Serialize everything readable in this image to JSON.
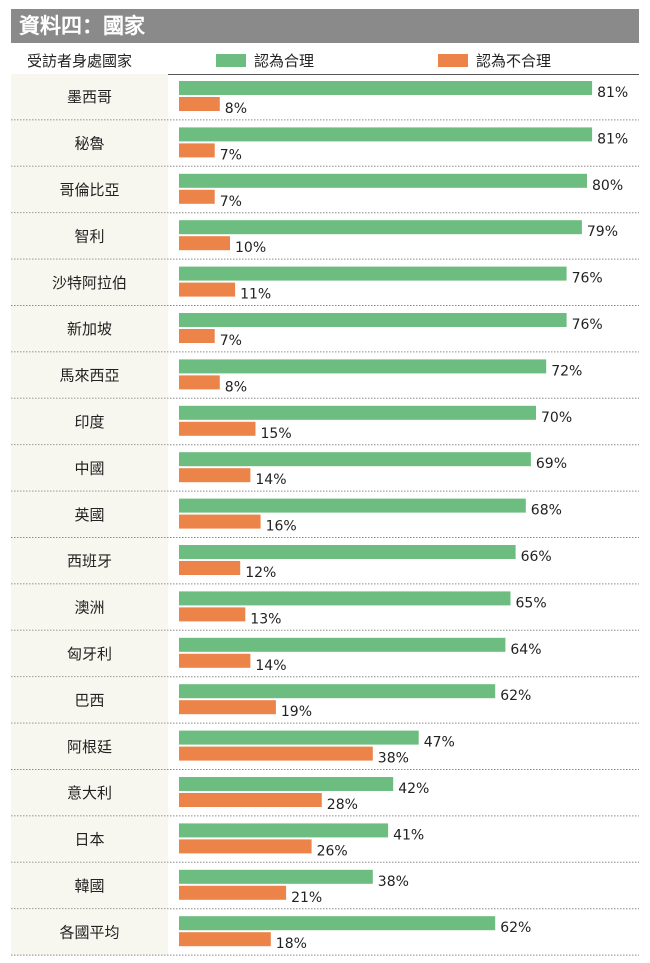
{
  "title": "資料四：國家",
  "colors": {
    "reasonable": "#6dbd80",
    "unreasonable": "#ec844a",
    "header": "#8a8a8a",
    "cell": "#f7f7ef"
  },
  "chart_data": {
    "type": "bar",
    "orientation": "horizontal",
    "category_header": "受訪者身處國家",
    "categories": [
      "墨西哥",
      "秘魯",
      "哥倫比亞",
      "智利",
      "沙特阿拉伯",
      "新加坡",
      "馬來西亞",
      "印度",
      "中國",
      "英國",
      "西班牙",
      "澳洲",
      "匈牙利",
      "巴西",
      "阿根廷",
      "意大利",
      "日本",
      "韓國",
      "各國平均"
    ],
    "series": [
      {
        "name": "認為合理",
        "values": [
          81,
          81,
          80,
          79,
          76,
          76,
          72,
          70,
          69,
          68,
          66,
          65,
          64,
          62,
          47,
          42,
          41,
          38,
          62
        ]
      },
      {
        "name": "認為不合理",
        "values": [
          8,
          7,
          7,
          10,
          11,
          7,
          8,
          15,
          14,
          16,
          12,
          13,
          14,
          19,
          38,
          28,
          26,
          21,
          18
        ]
      }
    ],
    "value_suffix": "%",
    "xlim": [
      0,
      100
    ],
    "legend": "top",
    "grid": false
  }
}
